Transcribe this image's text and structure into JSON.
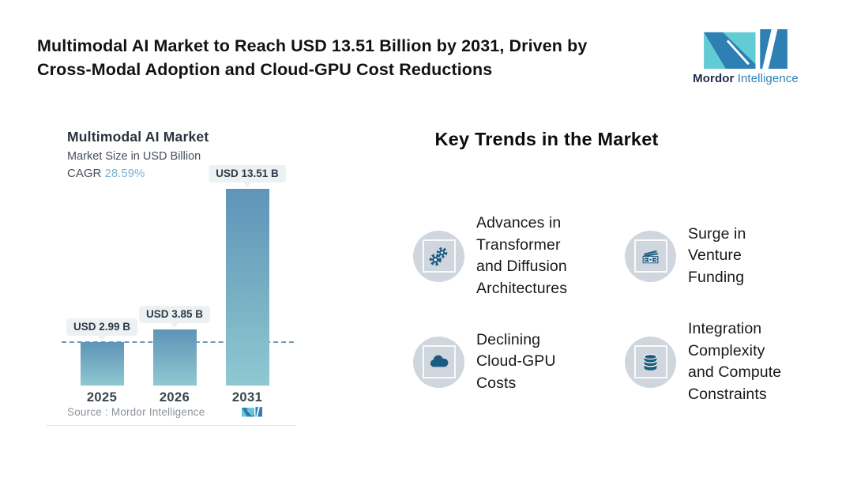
{
  "header": {
    "title": "Multimodal AI Market to Reach USD 13.51 Billion by 2031, Driven by\nCross-Modal Adoption and Cloud-GPU Cost Reductions",
    "brand": {
      "bold": "Mordor",
      "light": "Intelligence"
    }
  },
  "chart_data": {
    "type": "bar",
    "title": "Multimodal AI Market",
    "subtitle": "Market Size in USD Billion",
    "cagr_label": "CAGR",
    "cagr_value": "28.59%",
    "unit": "USD Billion",
    "categories": [
      "2025",
      "2026",
      "2031"
    ],
    "values": [
      2.99,
      3.85,
      13.51
    ],
    "bar_labels": [
      "USD 2.99 B",
      "USD 3.85 B",
      "USD 13.51 B"
    ],
    "reference_line": {
      "style": "dashed",
      "value": 2.99,
      "note": "level of 2025 bar top"
    },
    "source_label": "Source :  Mordor Intelligence",
    "legend": "none",
    "grid": "off",
    "colors": {
      "bar_gradient_top": "#5e94b8",
      "bar_gradient_bottom": "#8ec9d2",
      "dashed_line": "#6b9cbd",
      "label_bubble_bg": "#eef1f2",
      "cagr_value": "#7db3d6",
      "brand_blue": "#2e80b4",
      "brand_teal": "#63cbd4"
    }
  },
  "trends": {
    "heading": "Key Trends in the Market",
    "items": [
      {
        "icon": "gears-icon",
        "label": "Advances in\nTransformer\nand Diffusion\nArchitectures"
      },
      {
        "icon": "banknotes-icon",
        "label": "Surge in\nVenture\nFunding"
      },
      {
        "icon": "cloud-icon",
        "label": "Declining\nCloud-GPU\nCosts"
      },
      {
        "icon": "database-icon",
        "label": "Integration\nComplexity\nand Compute\nConstraints"
      }
    ]
  }
}
